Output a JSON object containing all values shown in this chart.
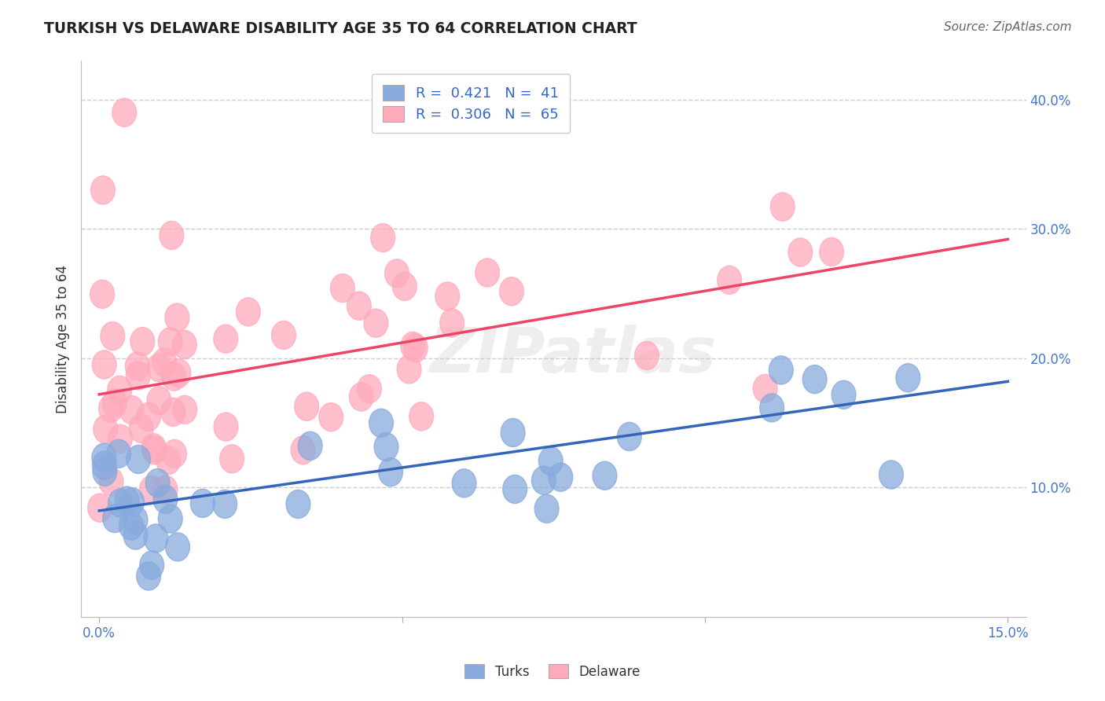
{
  "title": "TURKISH VS DELAWARE DISABILITY AGE 35 TO 64 CORRELATION CHART",
  "source": "Source: ZipAtlas.com",
  "ylabel": "Disability Age 35 to 64",
  "xlim": [
    -0.003,
    0.153
  ],
  "ylim": [
    0.0,
    0.43
  ],
  "xticks": [
    0.0,
    0.05,
    0.1,
    0.15
  ],
  "xticklabels": [
    "0.0%",
    "",
    "",
    "15.0%"
  ],
  "yticks": [
    0.1,
    0.2,
    0.3,
    0.4
  ],
  "yticklabels": [
    "10.0%",
    "20.0%",
    "30.0%",
    "40.0%"
  ],
  "grid_color": "#cccccc",
  "background_color": "#ffffff",
  "turks_color": "#88aadd",
  "delaware_color": "#ffaabb",
  "turks_line_color": "#3366bb",
  "delaware_line_color": "#ee4466",
  "legend_turks_R": "0.421",
  "legend_turks_N": "41",
  "legend_delaware_R": "0.306",
  "legend_delaware_N": "65",
  "watermark": "ZIPatlas",
  "turks_line_x0": 0.0,
  "turks_line_y0": 0.082,
  "turks_line_x1": 0.15,
  "turks_line_y1": 0.182,
  "delaware_line_x0": 0.0,
  "delaware_line_y0": 0.172,
  "delaware_line_x1": 0.15,
  "delaware_line_y1": 0.292
}
